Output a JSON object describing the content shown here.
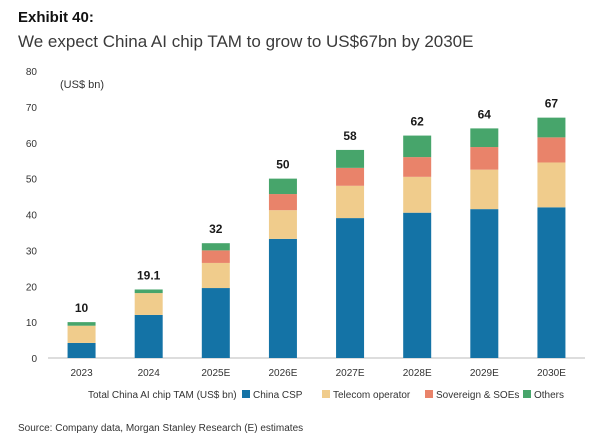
{
  "header": {
    "exhibit": "Exhibit 40:",
    "title": "We expect China AI chip TAM to grow to US$67bn by 2030E"
  },
  "footer": {
    "source": "Source: Company data, Morgan Stanley Research (E) estimates"
  },
  "chart_data": {
    "type": "bar",
    "stacked": true,
    "title": "We expect China AI chip TAM to grow to US$67bn by 2030E",
    "ylabel": "(US$ bn)",
    "ylim": [
      0,
      80
    ],
    "yticks": [
      0,
      10,
      20,
      30,
      40,
      50,
      60,
      70,
      80
    ],
    "grid": false,
    "legend_position": "bottom",
    "legend_title": "Total China AI chip TAM (US$ bn)",
    "categories": [
      "2023",
      "2024",
      "2025E",
      "2026E",
      "2027E",
      "2028E",
      "2029E",
      "2030E"
    ],
    "totals": [
      10,
      19.1,
      32,
      50,
      58,
      62,
      64,
      67
    ],
    "total_labels": [
      "10",
      "19.1",
      "32",
      "50",
      "58",
      "62",
      "64",
      "67"
    ],
    "series": [
      {
        "name": "China CSP",
        "color": "#1473a6",
        "values": [
          4.2,
          12.0,
          19.5,
          33.2,
          39.0,
          40.5,
          41.5,
          42.0
        ]
      },
      {
        "name": "Telecom operator",
        "color": "#f0cc8c",
        "values": [
          4.8,
          6.1,
          7.0,
          8.0,
          9.0,
          10.0,
          11.0,
          12.5
        ]
      },
      {
        "name": "Sovereign & SOEs",
        "color": "#e9836a",
        "values": [
          0.0,
          0.0,
          3.5,
          4.5,
          5.0,
          5.5,
          6.3,
          7.0
        ]
      },
      {
        "name": "Others",
        "color": "#47a56b",
        "values": [
          1.0,
          1.0,
          2.0,
          4.3,
          5.0,
          6.0,
          5.2,
          5.5
        ]
      }
    ]
  }
}
